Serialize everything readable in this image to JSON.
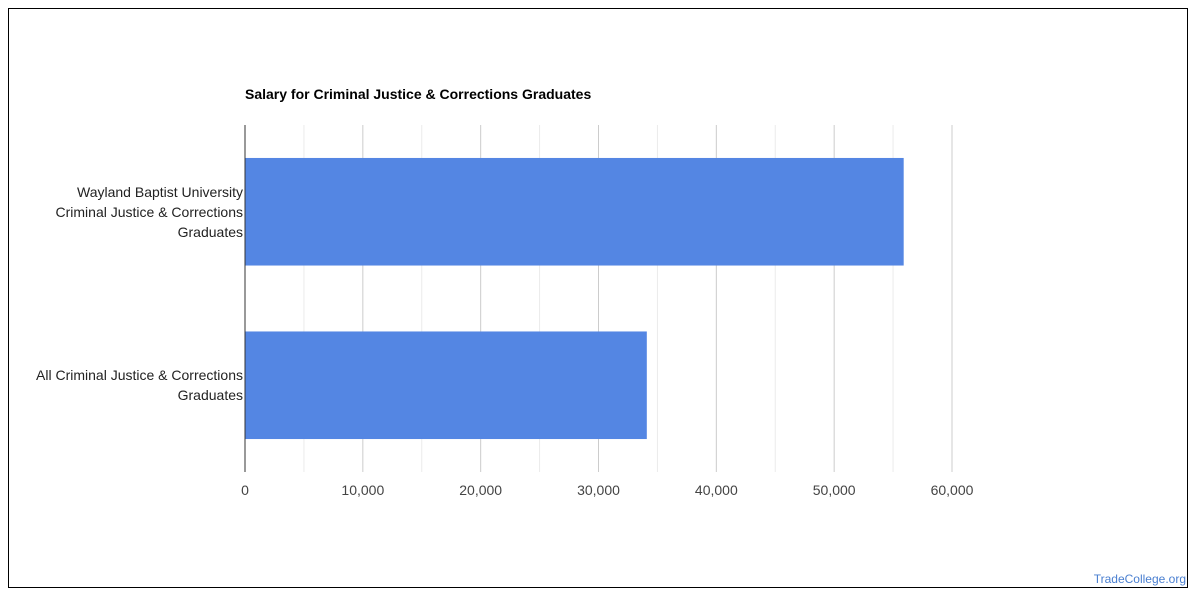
{
  "chart_data": {
    "type": "bar",
    "orientation": "horizontal",
    "title": "Salary for Criminal Justice & Corrections Graduates",
    "categories": [
      [
        "Wayland Baptist University",
        "Criminal Justice & Corrections",
        "Graduates"
      ],
      [
        "All Criminal Justice & Corrections",
        "Graduates"
      ]
    ],
    "values": [
      55900,
      34100
    ],
    "xlim": [
      0,
      60000
    ],
    "xticks": [
      "0",
      "10,000",
      "20,000",
      "30,000",
      "40,000",
      "50,000",
      "60,000"
    ],
    "bar_color": "#5486e3",
    "grid": true
  },
  "footer": {
    "source": "TradeCollege.org"
  }
}
